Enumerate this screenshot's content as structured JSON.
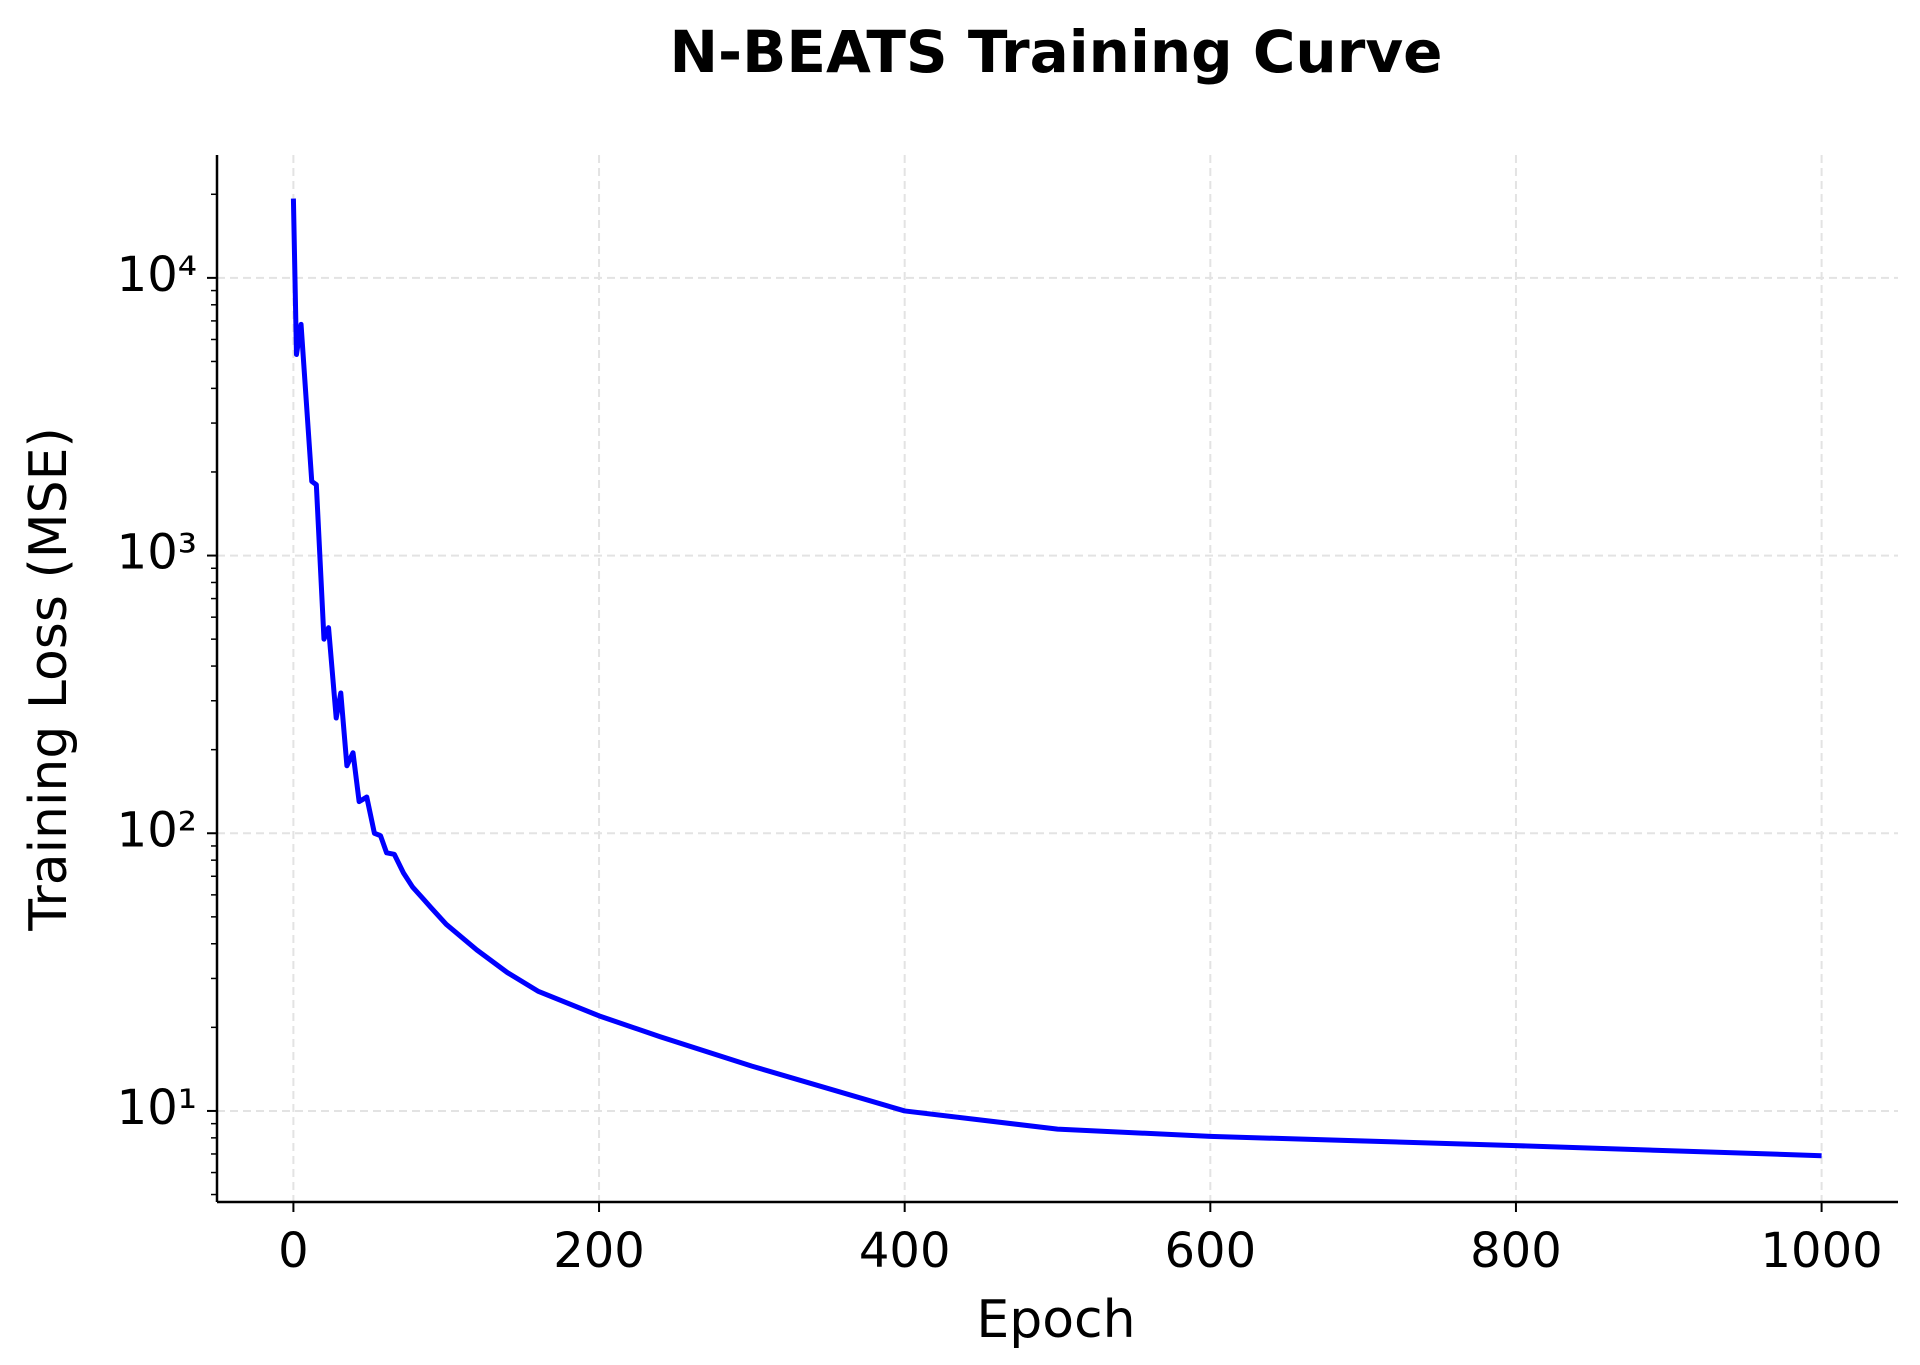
{
  "chart_data": {
    "type": "line",
    "title": "N-BEATS Training Curve",
    "x_label": "Epoch",
    "y_label": "Training Loss (MSE)",
    "yscale": "log",
    "grid": true,
    "xlim": [
      -50,
      1050
    ],
    "xticks": [
      0,
      200,
      400,
      600,
      800,
      1000
    ],
    "ylim": [
      4.7,
      27700
    ],
    "yticks": [
      {
        "value": 10,
        "label": "10¹"
      },
      {
        "value": 100,
        "label": "10²"
      },
      {
        "value": 1000,
        "label": "10³"
      },
      {
        "value": 10000,
        "label": "10⁴"
      }
    ],
    "yminorticks": [
      5,
      6,
      7,
      8,
      9,
      20,
      30,
      40,
      50,
      60,
      70,
      80,
      90,
      200,
      300,
      400,
      500,
      600,
      700,
      800,
      900,
      2000,
      3000,
      4000,
      5000,
      6000,
      7000,
      8000,
      9000,
      20000
    ],
    "series": [
      {
        "name": "Training Loss",
        "color": "#0000ff",
        "x": [
          0,
          2,
          5,
          12,
          15,
          20,
          23,
          28,
          31,
          35,
          39,
          43,
          48,
          53,
          57,
          61,
          66,
          72,
          78,
          85,
          90,
          100,
          120,
          140,
          160,
          200,
          240,
          300,
          400,
          500,
          600,
          800,
          1000
        ],
        "values": [
          19300,
          5300,
          6800,
          1850,
          1800,
          500,
          550,
          260,
          320,
          175,
          195,
          130,
          135,
          100,
          98,
          85,
          84,
          72,
          64,
          58,
          54,
          47,
          38,
          31.5,
          27,
          22,
          18.5,
          14.5,
          10,
          8.6,
          8.1,
          7.5,
          6.9
        ]
      }
    ]
  }
}
